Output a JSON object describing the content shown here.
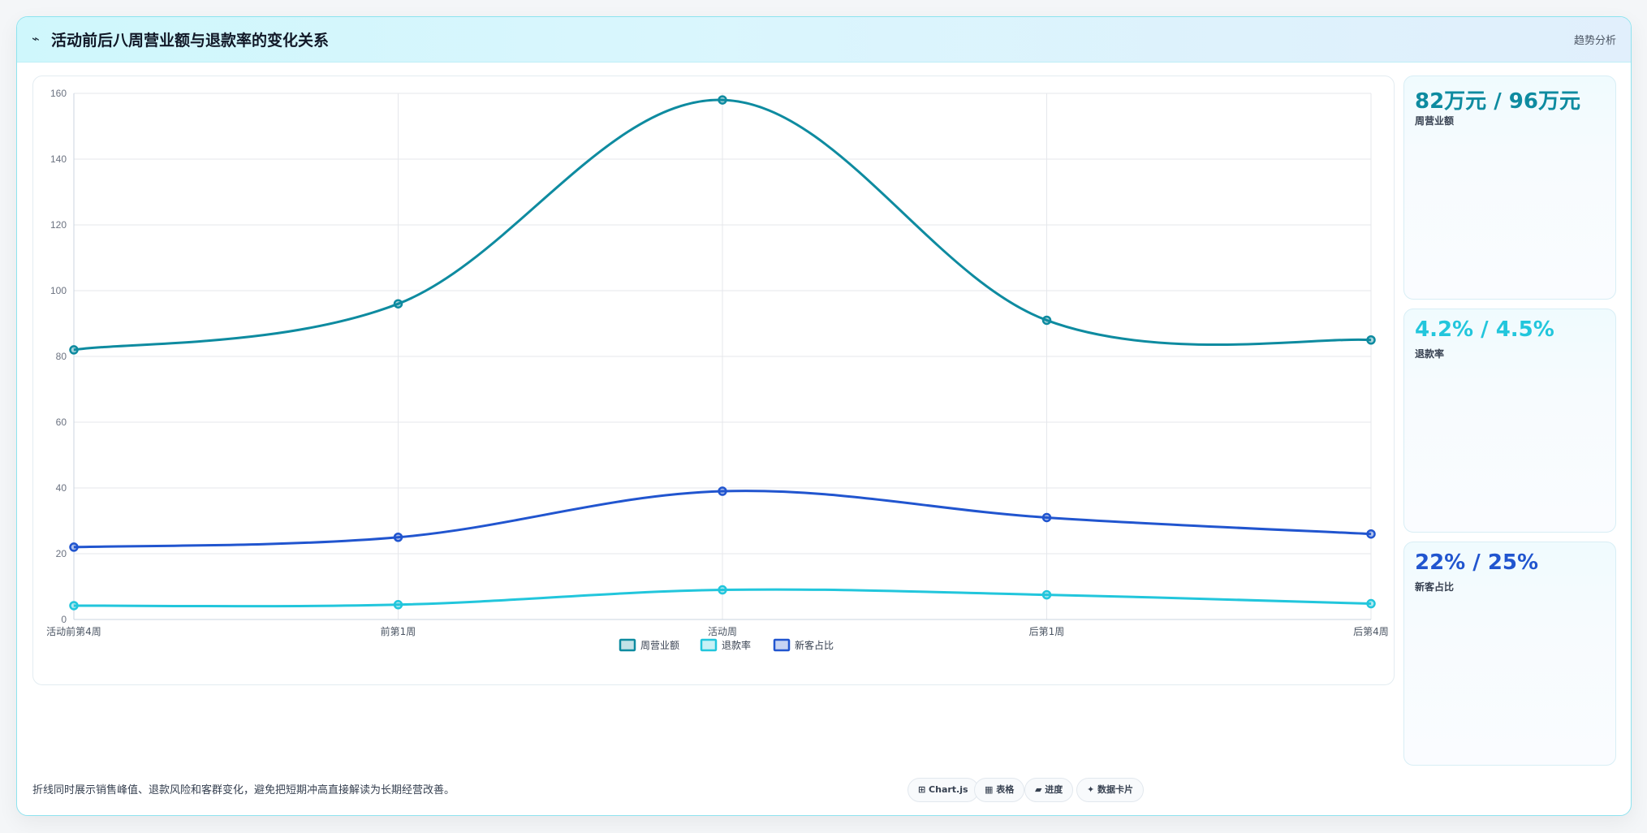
{
  "header": {
    "icon": "chart-line-icon",
    "title": "活动前后八周营业额与退款率的变化关系",
    "action_label": "趋势分析"
  },
  "kpis": [
    {
      "value": "82万元 / 96万元",
      "label": "周营业额",
      "color": "#0e8ba0"
    },
    {
      "value": "4.2% / 4.5%",
      "label": "退款率",
      "color": "#22c6dc"
    },
    {
      "value": "22% / 25%",
      "label": "新客占比",
      "color": "#2155cf"
    }
  ],
  "footer": {
    "note": "折线同时展示销售峰值、退款风险和客群变化，避免把短期冲高直接解读为长期经营改善。",
    "pills": [
      {
        "icon": "chart-icon",
        "label": "Chart.js"
      },
      {
        "icon": "table-icon",
        "label": "表格"
      },
      {
        "icon": "progress-icon",
        "label": "进度"
      },
      {
        "icon": "card-icon",
        "label": "数据卡片"
      }
    ]
  },
  "chart_data": {
    "type": "line",
    "categories": [
      "活动前第4周",
      "前第1周",
      "活动周",
      "后第1周",
      "后第4周"
    ],
    "series": [
      {
        "name": "周营业额",
        "values": [
          82,
          96,
          158,
          91,
          85
        ],
        "color": "#0e8ba0"
      },
      {
        "name": "退款率",
        "values": [
          4.2,
          4.5,
          9,
          7.5,
          4.8
        ],
        "color": "#22c6dc"
      },
      {
        "name": "新客占比",
        "values": [
          22,
          25,
          39,
          31,
          26
        ],
        "color": "#2155cf"
      }
    ],
    "ylim": [
      0,
      160
    ],
    "yticks": [
      0,
      20,
      40,
      60,
      80,
      100,
      120,
      140,
      160
    ],
    "grid": true,
    "legend": "bottom"
  }
}
